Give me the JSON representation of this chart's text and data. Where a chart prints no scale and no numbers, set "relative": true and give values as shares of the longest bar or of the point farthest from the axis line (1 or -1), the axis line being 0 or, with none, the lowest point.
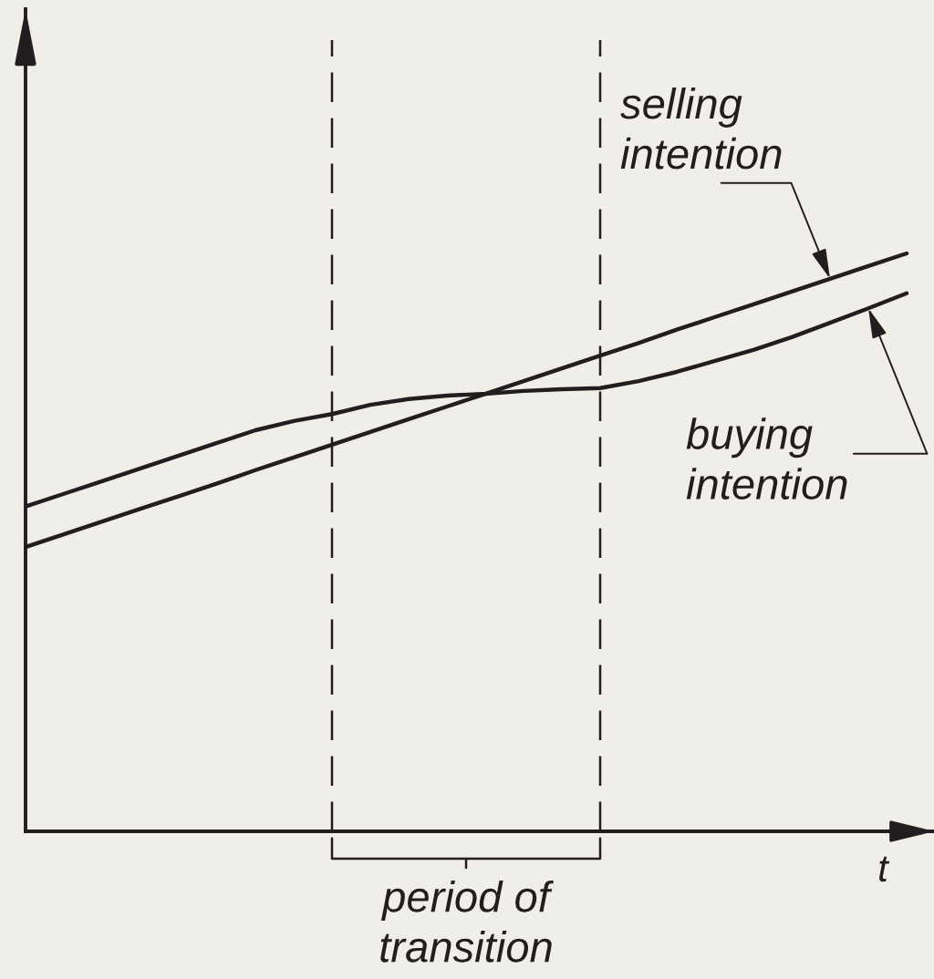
{
  "chart_data": {
    "type": "line",
    "relative": true,
    "xlabel": "t",
    "categories": [
      null,
      null,
      null,
      null,
      null,
      null,
      null,
      null,
      null,
      null,
      null,
      null,
      null,
      null,
      null,
      null,
      null,
      null,
      null,
      null,
      null,
      null,
      null,
      null
    ],
    "series": [
      {
        "name": "selling\nintention",
        "color": "#221e1f",
        "values": [
          0.492,
          0.514,
          0.536,
          0.558,
          0.58,
          0.602,
          0.625,
          0.647,
          0.669,
          0.691,
          0.713,
          0.735,
          0.757,
          0.779,
          0.801,
          0.823,
          0.845,
          0.868,
          0.89,
          0.912,
          0.934,
          0.956,
          0.978,
          1.0
        ]
      },
      {
        "name": "buying\nintention",
        "color": "#221e1f",
        "values": [
          0.562,
          0.584,
          0.606,
          0.628,
          0.65,
          0.672,
          0.694,
          0.71,
          0.722,
          0.738,
          0.748,
          0.754,
          0.757,
          0.762,
          0.765,
          0.767,
          0.779,
          0.795,
          0.814,
          0.833,
          0.855,
          0.88,
          0.905,
          0.931
        ]
      }
    ],
    "annotations": [
      "period of\ntransition"
    ],
    "legend": false,
    "grid": false,
    "marker": "none",
    "line_style": "solid"
  }
}
